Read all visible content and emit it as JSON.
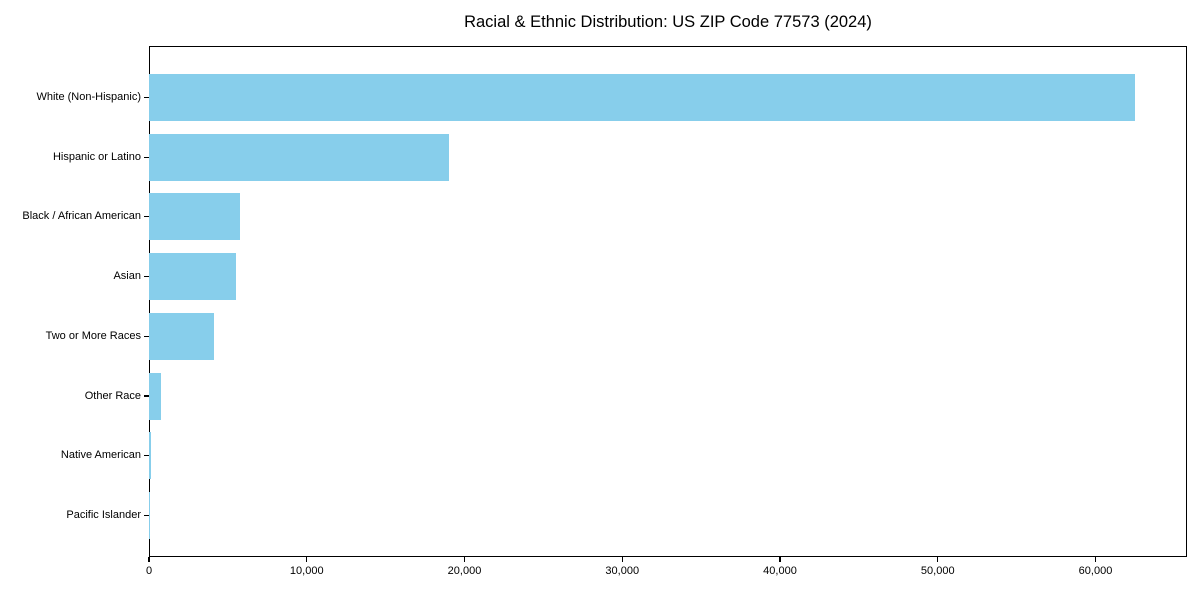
{
  "title": "Racial & Ethnic Distribution: US ZIP Code 77573 (2024)",
  "colors": {
    "bar": "#87CEEB",
    "spine": "#000000",
    "text": "#000000",
    "background": "#ffffff"
  },
  "chart_data": {
    "type": "bar",
    "orientation": "horizontal",
    "title": "Racial & Ethnic Distribution: US ZIP Code 77573 (2024)",
    "xlabel": "",
    "ylabel": "",
    "categories": [
      "White (Non-Hispanic)",
      "Hispanic or Latino",
      "Black / African American",
      "Asian",
      "Two or More Races",
      "Other Race",
      "Native American",
      "Pacific Islander"
    ],
    "values": [
      62500,
      19000,
      5800,
      5500,
      4100,
      780,
      130,
      30
    ],
    "xlim": [
      0,
      65800
    ],
    "x_ticks": [
      0,
      10000,
      20000,
      30000,
      40000,
      50000,
      60000
    ],
    "x_tick_labels": [
      "0",
      "10,000",
      "20,000",
      "30,000",
      "40,000",
      "50,000",
      "60,000"
    ],
    "bar_color": "#87CEEB",
    "grid": false,
    "legend": null
  }
}
